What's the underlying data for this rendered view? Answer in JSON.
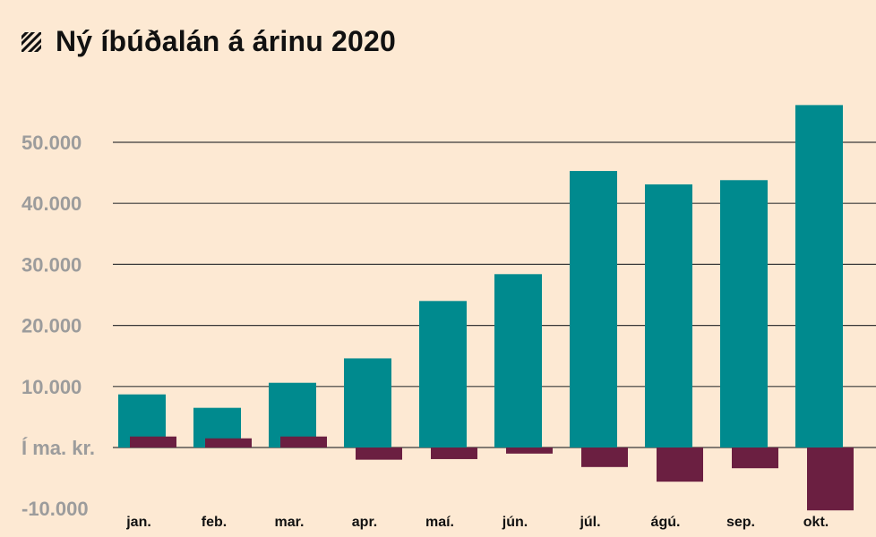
{
  "colors": {
    "background": "#fde9d3",
    "series1": "#008a8e",
    "series2": "#6b1f41",
    "grid": "#3a3a3a",
    "axis_text": "#9c9c9c",
    "title_text": "#111111"
  },
  "icon": "diagonal-stripes-icon",
  "chart_data": {
    "type": "bar",
    "title": "Ný íbúðalán á árinu 2020",
    "ylabel": "Í ma. kr.",
    "xlabel": "",
    "categories": [
      "jan.",
      "feb.",
      "mar.",
      "apr.",
      "maí.",
      "jún.",
      "júl.",
      "ágú.",
      "sep.",
      "okt."
    ],
    "series": [
      {
        "values": [
          8700,
          6500,
          10600,
          14600,
          24000,
          28400,
          45300,
          43100,
          43800,
          56100
        ]
      },
      {
        "values": [
          1800,
          1500,
          1800,
          -2000,
          -1900,
          -1000,
          -3200,
          -5600,
          -3400,
          -10300
        ]
      }
    ],
    "ylim": [
      -10000,
      56000
    ],
    "yticks": [
      {
        "value": 50000,
        "label": "50.000"
      },
      {
        "value": 40000,
        "label": "40.000"
      },
      {
        "value": 30000,
        "label": "30.000"
      },
      {
        "value": 20000,
        "label": "20.000"
      },
      {
        "value": 10000,
        "label": "10.000"
      },
      {
        "value": -10000,
        "label": "-10.000"
      }
    ],
    "grid": true
  }
}
